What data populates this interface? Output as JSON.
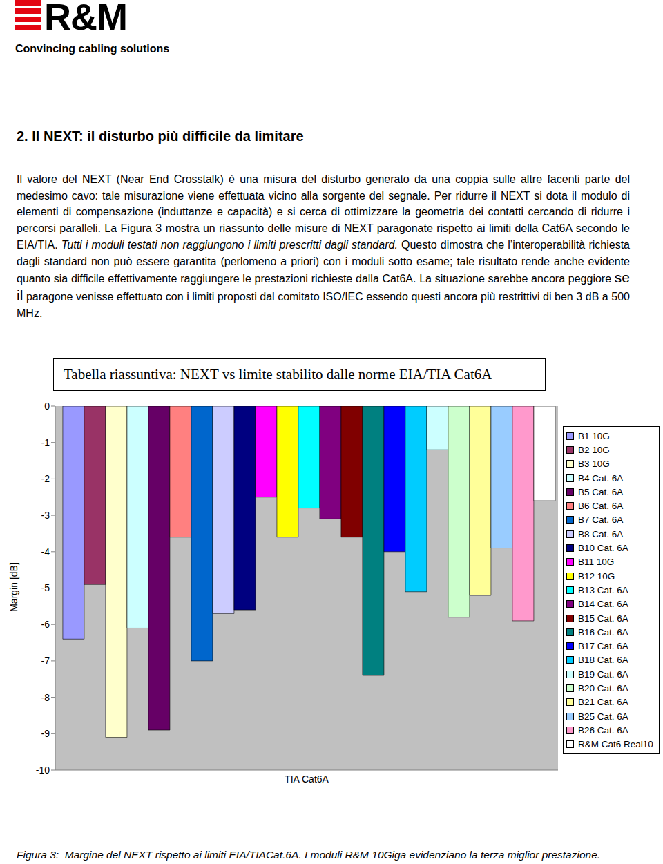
{
  "header": {
    "logo": "R&M",
    "tagline": "Convincing cabling solutions"
  },
  "heading": "2. Il NEXT: il disturbo più difficile da limitare",
  "paragraph": [
    {
      "text": "Il valore del NEXT (Near End Crosstalk) è una misura del disturbo generato da una coppia sulle altre facenti parte del medesimo cavo: tale misurazione viene effettuata vicino alla sorgente del segnale. Per ridurre il NEXT si dota il modulo di elementi di compensazione (induttanze e capacità) e si cerca di ottimizzare la geometria dei contatti cercando di ridurre i percorsi paralleli. La Figura 3 mostra un riassunto delle misure di NEXT paragonate rispetto ai limiti della Cat6A secondo le EIA/TIA. ",
      "style": "normal"
    },
    {
      "text": "Tutti i moduli testati non raggiungono i limiti prescritti dagli standard.",
      "style": "italic"
    },
    {
      "text": " Questo dimostra che l’interoperabilità richiesta dagli standard non può essere garantita (perlomeno a priori) con i moduli sotto esame; tale risultato rende anche evidente quanto sia difficile effettivamente raggiungere le prestazioni richieste dalla Cat6A. La situazione sarebbe ancora peggiore ",
      "style": "normal"
    },
    {
      "text": "se il",
      "style": "large"
    },
    {
      "text": " paragone venisse effettuato con i limiti proposti dal comitato ISO/IEC essendo questi ancora più restrittivi di ben 3 dB a 500 MHz.",
      "style": "normal"
    }
  ],
  "chart_title": "Tabella riassuntiva: NEXT vs limite stabilito dalle norme EIA/TIA Cat6A",
  "chart_data": {
    "type": "bar",
    "categories": [
      "TIA Cat6A"
    ],
    "y_label": "Margin [dB]",
    "ylim": [
      -10,
      0
    ],
    "yticks": [
      0,
      -1,
      -2,
      -3,
      -4,
      -5,
      -6,
      -7,
      -8,
      -9,
      -10
    ],
    "grid": false,
    "legend": "right",
    "series": [
      {
        "name": "B1 10G",
        "color": "#9999ff",
        "values": [
          -6.4
        ]
      },
      {
        "name": "B2 10G",
        "color": "#993366",
        "values": [
          -4.9
        ]
      },
      {
        "name": "B3 10G",
        "color": "#ffffcc",
        "values": [
          -9.1
        ]
      },
      {
        "name": "B4 Cat. 6A",
        "color": "#ccffff",
        "values": [
          -6.1
        ]
      },
      {
        "name": "B5 Cat. 6A",
        "color": "#660066",
        "values": [
          -8.9
        ]
      },
      {
        "name": "B6 Cat. 6A",
        "color": "#ff8080",
        "values": [
          -3.6
        ]
      },
      {
        "name": "B7 Cat. 6A",
        "color": "#0066cc",
        "values": [
          -7.0
        ]
      },
      {
        "name": "B8 Cat. 6A",
        "color": "#ccccff",
        "values": [
          -5.7
        ]
      },
      {
        "name": "B10 Cat. 6A",
        "color": "#000080",
        "values": [
          -5.6
        ]
      },
      {
        "name": "B11 10G",
        "color": "#ff00ff",
        "values": [
          -2.5
        ]
      },
      {
        "name": "B12 10G",
        "color": "#ffff00",
        "values": [
          -3.6
        ]
      },
      {
        "name": "B13 Cat. 6A",
        "color": "#00ffff",
        "values": [
          -2.8
        ]
      },
      {
        "name": "B14 Cat. 6A",
        "color": "#800080",
        "values": [
          -3.1
        ]
      },
      {
        "name": "B15 Cat. 6A",
        "color": "#800000",
        "values": [
          -3.6
        ]
      },
      {
        "name": "B16 Cat. 6A",
        "color": "#008080",
        "values": [
          -7.4
        ]
      },
      {
        "name": "B17 Cat. 6A",
        "color": "#0000ff",
        "values": [
          -4.0
        ]
      },
      {
        "name": "B18 Cat. 6A",
        "color": "#00ccff",
        "values": [
          -5.1
        ]
      },
      {
        "name": "B19 Cat. 6A",
        "color": "#ccffff",
        "values": [
          -1.2
        ]
      },
      {
        "name": "B20 Cat. 6A",
        "color": "#ccffcc",
        "values": [
          -5.8
        ]
      },
      {
        "name": "B21 Cat. 6A",
        "color": "#ffff99",
        "values": [
          -5.2
        ]
      },
      {
        "name": "B25 Cat. 6A",
        "color": "#99ccff",
        "values": [
          -3.9
        ]
      },
      {
        "name": "B26 Cat. 6A",
        "color": "#ff99cc",
        "values": [
          -5.9
        ]
      },
      {
        "name": "R&M Cat6 Real10",
        "color": "#ffffff",
        "values": [
          -2.6
        ]
      }
    ]
  },
  "caption": "Figura 3:  Margine del NEXT rispetto ai limiti EIA/TIACat.6A. I moduli R&M 10Giga evidenziano la terza miglior prestazione."
}
